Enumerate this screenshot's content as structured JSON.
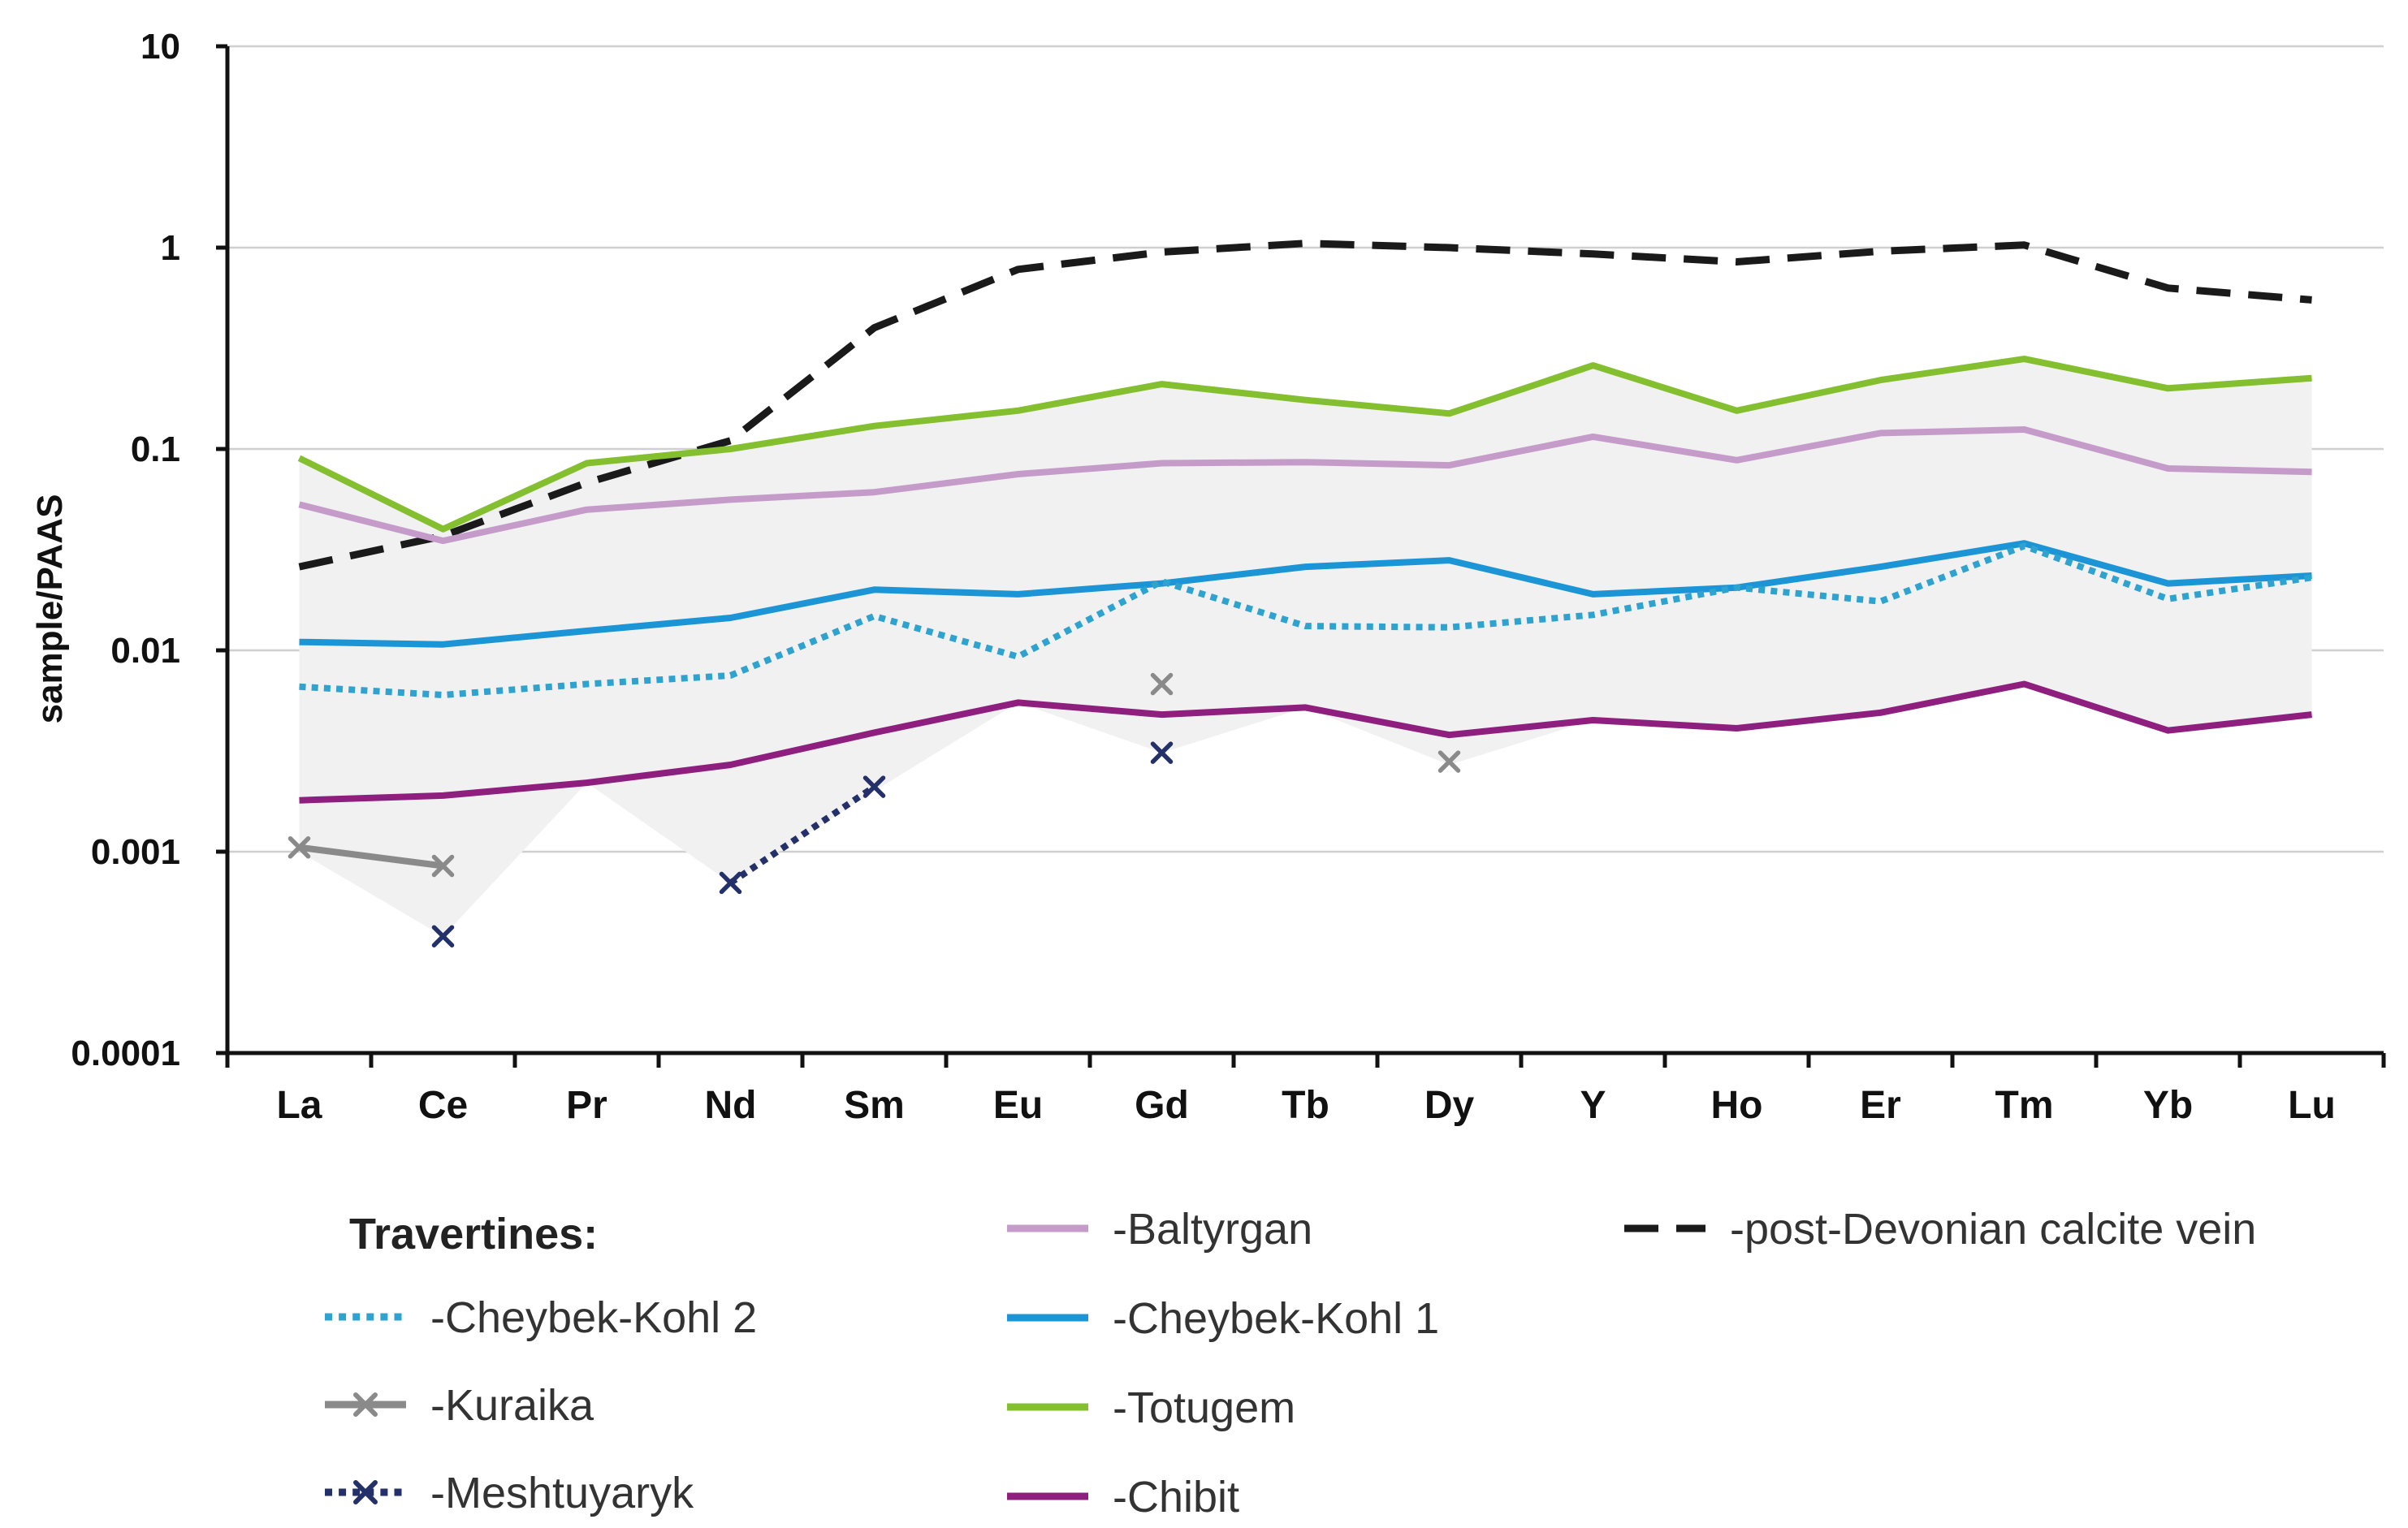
{
  "chart_data": {
    "type": "line",
    "title": "",
    "xlabel": "",
    "ylabel": "sample/PAAS",
    "yscale": "log",
    "ylim": [
      0.0001,
      10
    ],
    "yticks": [
      "10",
      "1",
      "0.1",
      "0.01",
      "0.001",
      "0.0001"
    ],
    "grid": "horizontal",
    "categories": [
      "La",
      "Ce",
      "Pr",
      "Nd",
      "Sm",
      "Eu",
      "Gd",
      "Tb",
      "Dy",
      "Y",
      "Ho",
      "Er",
      "Tm",
      "Yb",
      "Lu"
    ],
    "envelope": {
      "upper": [
        0.09,
        0.04,
        0.085,
        0.1,
        0.13,
        0.155,
        0.21,
        0.175,
        0.15,
        0.26,
        0.155,
        0.22,
        0.28,
        0.2,
        0.225
      ],
      "lower": [
        0.001,
        0.00038,
        0.0022,
        0.0007,
        0.002,
        0.0055,
        0.0031,
        0.0052,
        0.0027,
        0.0045,
        0.0041,
        0.0049,
        0.0068,
        0.004,
        0.0048
      ]
    },
    "legend_title": "Travertines:",
    "series": [
      {
        "name": "-post-Devonian calcite vein",
        "color": "#1a1a1a",
        "style": "dashed",
        "marker": "none",
        "values": [
          0.026,
          0.037,
          0.068,
          0.11,
          0.4,
          0.78,
          0.95,
          1.05,
          1.0,
          0.93,
          0.85,
          0.96,
          1.03,
          0.63,
          0.55
        ]
      },
      {
        "name": "-Totugem",
        "color": "#84bf2f",
        "style": "solid",
        "marker": "none",
        "values": [
          0.09,
          0.04,
          0.085,
          0.1,
          0.13,
          0.155,
          0.21,
          0.175,
          0.15,
          0.26,
          0.155,
          0.22,
          0.28,
          0.2,
          0.225
        ]
      },
      {
        "name": "-Baltyrgan",
        "color": "#c59cc9",
        "style": "solid",
        "marker": "none",
        "values": [
          0.053,
          0.035,
          0.05,
          0.056,
          0.061,
          0.075,
          0.085,
          0.086,
          0.083,
          0.115,
          0.088,
          0.12,
          0.125,
          0.08,
          0.077
        ]
      },
      {
        "name": "-Cheybek-Kohl 1",
        "color": "#1b95d6",
        "style": "solid",
        "marker": "none",
        "values": [
          0.011,
          0.0107,
          0.0125,
          0.0145,
          0.02,
          0.019,
          0.0215,
          0.026,
          0.028,
          0.019,
          0.0205,
          0.026,
          0.034,
          0.0215,
          0.0235
        ]
      },
      {
        "name": "-Cheybek-Kohl 2",
        "color": "#2fa3cf",
        "style": "dotted",
        "marker": "none",
        "values": [
          0.0066,
          0.006,
          0.0068,
          0.0075,
          0.0148,
          0.0093,
          0.022,
          0.0132,
          0.013,
          0.015,
          0.0205,
          0.0175,
          0.033,
          0.018,
          0.023
        ]
      },
      {
        "name": "-Chibit",
        "color": "#8e1f7e",
        "style": "solid",
        "marker": "none",
        "values": [
          0.0018,
          0.0019,
          0.0022,
          0.0027,
          0.0039,
          0.0055,
          0.0048,
          0.0052,
          0.0038,
          0.0045,
          0.0041,
          0.0049,
          0.0068,
          0.004,
          0.0048
        ]
      },
      {
        "name": "-Kuraika",
        "color": "#8a8a8a",
        "style": "solid",
        "marker": "x",
        "values": [
          0.00105,
          0.00085,
          null,
          null,
          null,
          null,
          0.0068,
          null,
          0.0028,
          null,
          null,
          null,
          null,
          null,
          null
        ]
      },
      {
        "name": "-Meshtuyaryk",
        "color": "#24306a",
        "style": "dotted",
        "marker": "x",
        "values": [
          null,
          0.00038,
          null,
          0.0007,
          0.0021,
          null,
          0.0031,
          null,
          null,
          null,
          null,
          null,
          null,
          null,
          null
        ]
      }
    ]
  },
  "legend": {
    "title": "Travertines:",
    "left": [
      {
        "label": "-Cheybek-Kohl 2",
        "color": "#2fa3cf",
        "style": "dotted",
        "marker": "none"
      },
      {
        "label": "-Kuraika",
        "color": "#8a8a8a",
        "style": "solid",
        "marker": "x"
      },
      {
        "label": "-Meshtuyaryk",
        "color": "#24306a",
        "style": "dotted",
        "marker": "x"
      }
    ],
    "middle": [
      {
        "label": "-Baltyrgan",
        "color": "#c59cc9",
        "style": "solid",
        "marker": "none"
      },
      {
        "label": "-Cheybek-Kohl 1",
        "color": "#1b95d6",
        "style": "solid",
        "marker": "none"
      },
      {
        "label": "-Totugem",
        "color": "#84bf2f",
        "style": "solid",
        "marker": "none"
      },
      {
        "label": "-Chibit",
        "color": "#8e1f7e",
        "style": "solid",
        "marker": "none"
      }
    ],
    "right": [
      {
        "label": "-post-Devonian calcite vein",
        "color": "#1a1a1a",
        "style": "dashed",
        "marker": "none"
      }
    ]
  }
}
